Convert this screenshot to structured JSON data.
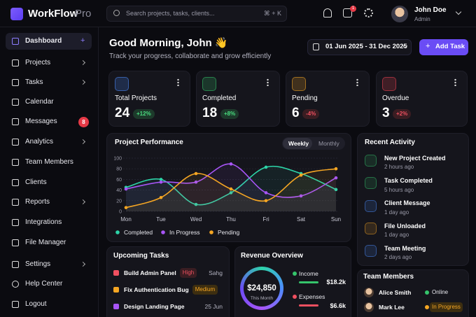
{
  "brand": {
    "name": "WorkFlow",
    "suffix": "Pro"
  },
  "search": {
    "placeholder": "Search projects, tasks, clients...",
    "shortcut": "⌘ + K"
  },
  "notifications_badge": 1,
  "user": {
    "name": "John Doe",
    "role": "Admin"
  },
  "sidebar": {
    "nav": [
      "Dashboard",
      "Projects",
      "Tasks",
      "Calendar",
      "Messages",
      "Analytics",
      "Team Members",
      "Clients",
      "Reports",
      "Integrations",
      "File Manager"
    ],
    "messages_badge": 8,
    "bottom": [
      "Settings",
      "Help Center",
      "Logout"
    ]
  },
  "header": {
    "greeting": "Good Morning, John 👋",
    "subtitle": "Track your progress, collaborate and grow efficiently",
    "date_range": "01 Jun 2025 - 31 Dec 2025",
    "add_button": "Add Task"
  },
  "stats": [
    {
      "title": "Total Projects",
      "value": 24,
      "change": "+12%"
    },
    {
      "title": "Completed",
      "value": 18,
      "change": "+8%"
    },
    {
      "title": "Pending",
      "value": 6,
      "change": "-4%"
    },
    {
      "title": "Overdue",
      "value": 3,
      "change": "+2%"
    }
  ],
  "performance_tabs": [
    "Weekly",
    "Monthly"
  ],
  "chart_data": {
    "type": "line",
    "title": "Project Performance",
    "categories": [
      "Mon",
      "Tue",
      "Wed",
      "Thu",
      "Fri",
      "Sat",
      "Sun"
    ],
    "series": [
      {
        "name": "Completed",
        "color": "#2dd4a8",
        "values": [
          45,
          60,
          13,
          35,
          83,
          71,
          41
        ]
      },
      {
        "name": "In Progress",
        "color": "#a855f7",
        "values": [
          42,
          55,
          55,
          89,
          35,
          29,
          63
        ]
      },
      {
        "name": "Pending",
        "color": "#f5a623",
        "values": [
          7,
          26,
          71,
          42,
          20,
          68,
          80
        ]
      }
    ],
    "ylim": [
      0,
      100
    ],
    "yticks": [
      0,
      20,
      40,
      60,
      80,
      100
    ],
    "grid": true
  },
  "recent_activity": {
    "title": "Recent Activity",
    "items": [
      {
        "title": "New Project Created",
        "time": "2 hours ago"
      },
      {
        "title": "Task Completed",
        "time": "5 hours ago"
      },
      {
        "title": "Client Message",
        "time": "1 day ago"
      },
      {
        "title": "File Unloaded",
        "time": "1 day ago"
      },
      {
        "title": "Team Meeting",
        "time": "2 days ago"
      }
    ]
  },
  "upcoming_tasks": {
    "title": "Upcoming Tasks",
    "items": [
      {
        "title": "Build Admin Panel",
        "tag": "High",
        "due": "Sahg"
      },
      {
        "title": "Fix Authentication Bug",
        "tag": "Medium"
      },
      {
        "title": "Design Landing Page",
        "due": "25 Jun"
      }
    ]
  },
  "revenue": {
    "title": "Revenue Overview",
    "total": "$24,850",
    "period": "This Month",
    "income_label": "Income",
    "income": "$18.2k",
    "expenses_label": "Expenses",
    "expenses": "$6.6k"
  },
  "team": {
    "title": "Team Members",
    "members": [
      {
        "name": "Alice Smith",
        "status": "Online"
      },
      {
        "name": "Mark Lee",
        "status": "In Progress"
      }
    ]
  }
}
